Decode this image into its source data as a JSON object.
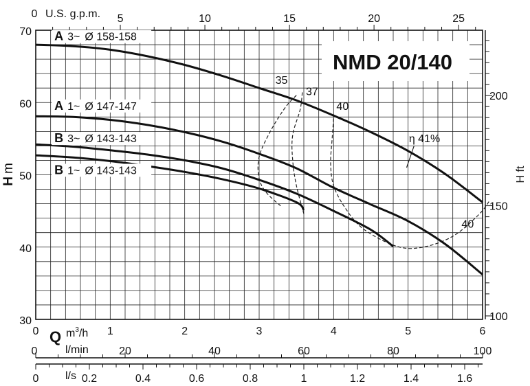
{
  "chart_data": {
    "type": "line",
    "title": "NMD 20/140",
    "ylabel": "H m",
    "ylabel_parts": {
      "letter": "H",
      "unit": "m"
    },
    "y2label": "H ft",
    "x_label_q": "Q",
    "x_unit_m3h": "m³/h",
    "x_unit_m3h_parts": {
      "base": "m",
      "sup": "3",
      "rest": "/h"
    },
    "x_unit_lmin": "l/min",
    "x_unit_ls": "l/s",
    "top_axis_label": "U.S. g.p.m.",
    "xlim_m3h": [
      0,
      6
    ],
    "ylim_m": [
      30,
      70
    ],
    "ylim_ft": [
      98.4,
      229.7
    ],
    "grid": true,
    "x_ticks_m3h": [
      "0",
      "1",
      "2",
      "3",
      "4",
      "5",
      "6"
    ],
    "y_ticks_m": [
      "30",
      "40",
      "50",
      "60",
      "70"
    ],
    "ft_ticks": [
      {
        "value": 100,
        "label": "100"
      },
      {
        "value": 150,
        "label": "150"
      },
      {
        "value": 200,
        "label": "200"
      }
    ],
    "gpm_ticks": [
      {
        "value": 0,
        "label": "0"
      },
      {
        "value": 5,
        "label": "5"
      },
      {
        "value": 10,
        "label": "10"
      },
      {
        "value": 15,
        "label": "15"
      },
      {
        "value": 20,
        "label": "20"
      },
      {
        "value": 25,
        "label": "25"
      }
    ],
    "lmin_ticks": [
      {
        "value": 0,
        "label": "0"
      },
      {
        "value": 20,
        "label": "20"
      },
      {
        "value": 40,
        "label": "40"
      },
      {
        "value": 60,
        "label": "60"
      },
      {
        "value": 80,
        "label": "80"
      },
      {
        "value": 100,
        "label": "100"
      }
    ],
    "ls_ticks": [
      {
        "value": 0,
        "label": "0"
      },
      {
        "value": 0.2,
        "label": "0.2"
      },
      {
        "value": 0.4,
        "label": "0.4"
      },
      {
        "value": 0.6,
        "label": "0.6"
      },
      {
        "value": 0.8,
        "label": "0.8"
      },
      {
        "value": 1.0,
        "label": "1"
      },
      {
        "value": 1.2,
        "label": "1.2"
      },
      {
        "value": 1.4,
        "label": "1.4"
      },
      {
        "value": 1.6,
        "label": "1.6"
      }
    ],
    "series": [
      {
        "name": "A 3~ Ø 158-158",
        "model": "A",
        "phase": "3~",
        "impeller": "Ø 158-158",
        "label_at": [
          0.25,
          68.6
        ],
        "points": [
          [
            0,
            68.0
          ],
          [
            0.5,
            67.8
          ],
          [
            1,
            67.3
          ],
          [
            1.5,
            66.4
          ],
          [
            2,
            65.2
          ],
          [
            2.5,
            63.7
          ],
          [
            3,
            62.0
          ],
          [
            3.5,
            60.3
          ],
          [
            4,
            58.2
          ],
          [
            4.5,
            55.9
          ],
          [
            5,
            53.3
          ],
          [
            5.5,
            50.1
          ],
          [
            6,
            46.2
          ]
        ]
      },
      {
        "name": "A 1~ Ø 147-147",
        "model": "A",
        "phase": "1~",
        "impeller": "Ø 147-147",
        "label_at": [
          0.25,
          59.0
        ],
        "points": [
          [
            0,
            58.1
          ],
          [
            0.5,
            58.0
          ],
          [
            1,
            57.6
          ],
          [
            1.5,
            56.9
          ],
          [
            2,
            55.9
          ],
          [
            2.5,
            54.6
          ],
          [
            3,
            52.9
          ],
          [
            3.5,
            50.9
          ],
          [
            4,
            48.2
          ],
          [
            4.5,
            45.9
          ],
          [
            5,
            43.6
          ],
          [
            5.5,
            40.4
          ],
          [
            6,
            36.2
          ]
        ]
      },
      {
        "name": "B 3~ Ø 143-143",
        "model": "B",
        "phase": "3~",
        "impeller": "Ø 143-143",
        "label_at": [
          0.25,
          54.5
        ],
        "points": [
          [
            0,
            54.2
          ],
          [
            0.5,
            53.9
          ],
          [
            1,
            53.4
          ],
          [
            1.5,
            52.8
          ],
          [
            2,
            52.0
          ],
          [
            2.5,
            50.9
          ],
          [
            3,
            49.3
          ],
          [
            3.5,
            47.4
          ],
          [
            4,
            45.0
          ],
          [
            4.5,
            42.4
          ],
          [
            4.8,
            40.1
          ]
        ]
      },
      {
        "name": "B 1~ Ø 143-143",
        "model": "B",
        "phase": "1~",
        "impeller": "Ø 143-143",
        "label_at": [
          0.25,
          50.1
        ],
        "points": [
          [
            0,
            52.7
          ],
          [
            0.5,
            52.4
          ],
          [
            1,
            51.9
          ],
          [
            1.5,
            51.2
          ],
          [
            2,
            50.4
          ],
          [
            2.5,
            49.4
          ],
          [
            3,
            48.1
          ],
          [
            3.5,
            46.2
          ],
          [
            3.6,
            45.1
          ]
        ]
      }
    ],
    "efficiency_curves": [
      {
        "label": "35",
        "label_at": [
          3.3,
          62.6
        ],
        "points": [
          [
            3.5,
            61.0
          ],
          [
            3.35,
            59.3
          ],
          [
            3.15,
            56.0
          ],
          [
            3.0,
            52.5
          ],
          [
            3.0,
            49.5
          ],
          [
            3.1,
            47.5
          ],
          [
            3.3,
            45.6
          ]
        ]
      },
      {
        "label": "37",
        "label_at": [
          3.71,
          61.0
        ],
        "points": [
          [
            3.58,
            61.4
          ],
          [
            3.55,
            59.0
          ],
          [
            3.45,
            55.5
          ],
          [
            3.45,
            52.0
          ],
          [
            3.5,
            48.5
          ],
          [
            3.6,
            44.6
          ]
        ]
      },
      {
        "label": "40",
        "label_at": [
          4.12,
          59.0
        ],
        "points": [
          [
            4.0,
            57.8
          ],
          [
            3.98,
            55.0
          ],
          [
            3.96,
            51.5
          ],
          [
            4.0,
            48.5
          ],
          [
            4.15,
            45.5
          ],
          [
            4.4,
            42.5
          ],
          [
            4.85,
            40.1
          ],
          [
            5.2,
            40.0
          ],
          [
            5.6,
            41.5
          ],
          [
            5.95,
            44.5
          ],
          [
            6.1,
            46.5
          ]
        ]
      },
      {
        "label": "η 41%",
        "label_at": [
          5.22,
          54.5
        ],
        "points": [
          [
            5.08,
            54.0
          ],
          [
            4.98,
            51.0
          ]
        ]
      },
      {
        "label": "40",
        "label_at": [
          5.8,
          42.7
        ],
        "points": []
      }
    ]
  }
}
